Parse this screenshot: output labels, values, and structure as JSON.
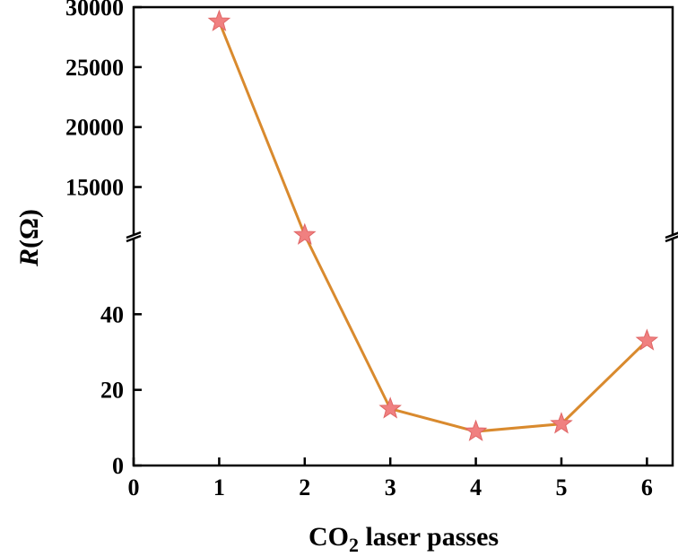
{
  "chart_data": {
    "type": "line",
    "xlabel": "CO2 laser passes",
    "xlabel_main": "CO",
    "xlabel_sub": "2",
    "xlabel_rest": " laser passes",
    "ylabel_italic": "R",
    "ylabel_rest": "(Ω)",
    "x": [
      1,
      2,
      3,
      4,
      5,
      6
    ],
    "y": [
      28800,
      11000,
      15,
      9,
      11,
      33
    ],
    "x_ticks": [
      "0",
      "1",
      "2",
      "3",
      "4",
      "5",
      "6"
    ],
    "xlim": [
      0,
      6.3
    ],
    "y_axis_break": true,
    "ylim_lower": [
      0,
      60
    ],
    "ylim_upper": [
      11000,
      30000
    ],
    "y_ticks_lower": [
      "0",
      "20",
      "40"
    ],
    "y_ticks_upper": [
      "15000",
      "20000",
      "25000",
      "30000"
    ],
    "line_color": "#d98a2e",
    "marker": "star",
    "marker_color": "#f08080",
    "grid": false,
    "legend": false
  }
}
